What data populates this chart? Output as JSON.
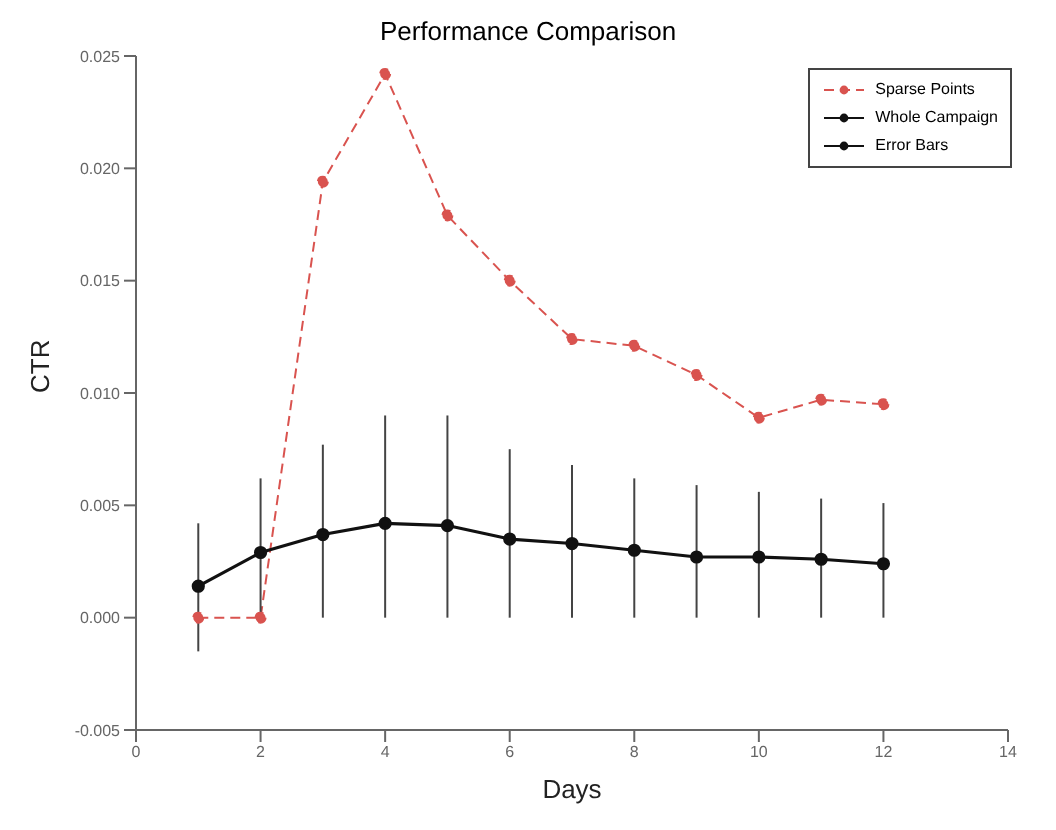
{
  "chart_data": {
    "type": "line",
    "title": "Performance Comparison",
    "xlabel": "Days",
    "ylabel": "CTR",
    "x": [
      1,
      2,
      3,
      4,
      5,
      6,
      7,
      8,
      9,
      10,
      11,
      12
    ],
    "series": [
      {
        "name": "Sparse Points",
        "color": "#d9534f",
        "line_style": "dashed",
        "values": [
          0,
          0,
          0.0194,
          0.0242,
          0.0179,
          0.015,
          0.0124,
          0.0121,
          0.0108,
          0.0089,
          0.0097,
          0.0095
        ]
      },
      {
        "name": "Whole Campaign",
        "color": "#111111",
        "line_style": "solid",
        "values": [
          0.0014,
          0.0029,
          0.0037,
          0.0042,
          0.0041,
          0.0035,
          0.0033,
          0.003,
          0.0027,
          0.0027,
          0.0026,
          0.0024
        ],
        "errors": [
          [
            -0.0015,
            0.0042
          ],
          [
            0,
            0.0062
          ],
          [
            0,
            0.0077
          ],
          [
            0,
            0.009
          ],
          [
            0,
            0.009
          ],
          [
            0,
            0.0075
          ],
          [
            0,
            0.0068
          ],
          [
            0,
            0.0062
          ],
          [
            0,
            0.0059
          ],
          [
            0,
            0.0056
          ],
          [
            0,
            0.0053
          ],
          [
            0,
            0.0051
          ]
        ]
      },
      {
        "name": "Error Bars",
        "color": "#111111",
        "line_style": "solid",
        "values": [
          null,
          null,
          null,
          null,
          null,
          null,
          null,
          null,
          null,
          null,
          null,
          null
        ]
      }
    ],
    "xlim": [
      0,
      14
    ],
    "xticks": [
      0,
      2,
      4,
      6,
      8,
      10,
      12,
      14
    ],
    "ylim": [
      -0.005,
      0.025
    ],
    "yticks": [
      -0.005,
      {
        "value": 0,
        "label": "0.000"
      },
      0.005,
      {
        "value": 0.01,
        "label": "0.010"
      },
      0.015,
      {
        "value": 0.02,
        "label": "0.020"
      },
      0.025
    ],
    "grid": false,
    "legend": "top right",
    "marker": "circle"
  }
}
